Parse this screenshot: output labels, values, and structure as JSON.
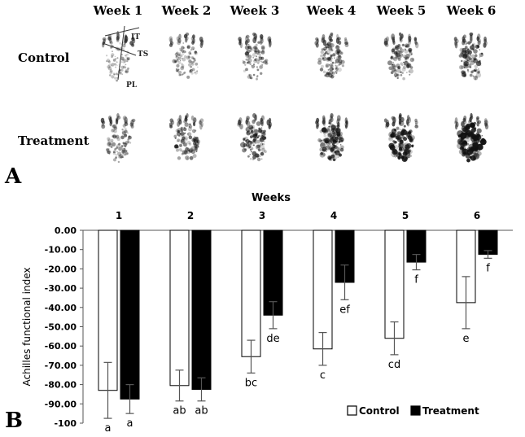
{
  "panel_a": {
    "letter": "A",
    "weeks": [
      "Week 1",
      "Week 2",
      "Week 3",
      "Week 4",
      "Week 5",
      "Week 6"
    ],
    "rows": [
      "Control",
      "Treatment"
    ],
    "measure_labels": [
      "IT",
      "TS",
      "PL"
    ]
  },
  "panel_b": {
    "letter": "B"
  },
  "chart_data": {
    "type": "bar",
    "title": "Weeks",
    "categories": [
      "1",
      "2",
      "3",
      "4",
      "5",
      "6"
    ],
    "ylabel": "Achilles functional index",
    "ylim": [
      -100,
      0
    ],
    "yticks": [
      "0.00",
      "-10.00",
      "-20.00",
      "-30.00",
      "-40.00",
      "-50.00",
      "-60.00",
      "-70.00",
      "-80.00",
      "-90.00",
      "-100"
    ],
    "legend_position": "bottom-right",
    "series": [
      {
        "name": "Control",
        "fill": "#ffffff",
        "values": [
          -83,
          -80.5,
          -65.5,
          -61.5,
          -56,
          -37.5
        ],
        "errors": [
          14.5,
          8,
          8.5,
          8.5,
          8.5,
          13.5
        ],
        "letters": [
          "a",
          "ab",
          "bc",
          "c",
          "cd",
          "e"
        ]
      },
      {
        "name": "Treatment",
        "fill": "#000000",
        "values": [
          -87.5,
          -82.5,
          -44,
          -27,
          -16.5,
          -12.5
        ],
        "errors": [
          7.5,
          6,
          7,
          9,
          4,
          2
        ],
        "letters": [
          "a",
          "ab",
          "de",
          "ef",
          "f",
          "f"
        ]
      }
    ]
  }
}
